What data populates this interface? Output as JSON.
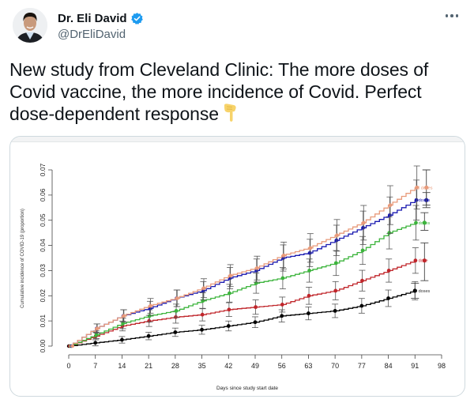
{
  "author": {
    "name": "Dr. Eli David",
    "handle": "@DrEliDavid",
    "verified": true,
    "avatar_icon": "profile-photo",
    "verified_icon": "verified-badge-icon",
    "verified_color": "#1d9bf0"
  },
  "menu": {
    "icon": "more-horizontal-icon"
  },
  "tweet": {
    "text": "New study from Cleveland Clinic: The more doses of Covid vaccine, the more incidence of Covid. Perfect dose-dependent response",
    "emoji": "backhand-index-pointing-down"
  },
  "chart_data": {
    "type": "line",
    "title": "",
    "xlabel": "Days since study start date",
    "ylabel": "Cumulative incidence of COVID-19 (proportion)",
    "xlim": [
      0,
      98
    ],
    "ylim": [
      0,
      0.07
    ],
    "x_ticks": [
      0,
      7,
      14,
      21,
      28,
      35,
      42,
      49,
      56,
      63,
      70,
      77,
      84,
      91,
      98
    ],
    "y_ticks": [
      "0.00",
      "0.01",
      "0.02",
      "0.03",
      "0.04",
      "0.05",
      "0.06",
      "0.07"
    ],
    "grid": false,
    "legend_placement": "right (inline labels)",
    "x": [
      0,
      7,
      14,
      21,
      28,
      35,
      42,
      49,
      56,
      63,
      70,
      77,
      84,
      91
    ],
    "series": [
      {
        "name": "0 doses",
        "color": "#000000",
        "values": [
          0.0,
          0.0013,
          0.0025,
          0.004,
          0.0055,
          0.0065,
          0.008,
          0.0095,
          0.012,
          0.013,
          0.014,
          0.016,
          0.019,
          0.022
        ],
        "end_marker": {
          "x": 91,
          "y": 0.022,
          "ci": [
            0.019,
            0.025
          ]
        }
      },
      {
        "name": "1 dose",
        "color": "#c0262b",
        "values": [
          0.0,
          0.004,
          0.008,
          0.01,
          0.0115,
          0.0125,
          0.0145,
          0.0155,
          0.0165,
          0.02,
          0.022,
          0.026,
          0.03,
          0.034
        ],
        "end_marker": {
          "x": 93.5,
          "y": 0.034,
          "ci": [
            0.026,
            0.041
          ]
        }
      },
      {
        "name": "2 doses",
        "color": "#3cb43c",
        "values": [
          0.0,
          0.0045,
          0.009,
          0.012,
          0.014,
          0.018,
          0.021,
          0.025,
          0.027,
          0.03,
          0.033,
          0.038,
          0.045,
          0.049
        ],
        "end_marker": {
          "x": 93.5,
          "y": 0.049,
          "ci": [
            0.046,
            0.053
          ]
        }
      },
      {
        "name": "3 doses",
        "color": "#1a1ab0",
        "values": [
          0.0,
          0.007,
          0.012,
          0.015,
          0.019,
          0.022,
          0.027,
          0.03,
          0.035,
          0.037,
          0.042,
          0.047,
          0.052,
          0.058
        ],
        "end_marker": {
          "x": 94,
          "y": 0.058,
          "ci": [
            0.055,
            0.061
          ]
        }
      },
      {
        "name": ">3 doses",
        "color": "#e89a7a",
        "values": [
          0.0,
          0.007,
          0.012,
          0.016,
          0.019,
          0.023,
          0.028,
          0.031,
          0.036,
          0.039,
          0.044,
          0.049,
          0.056,
          0.063
        ],
        "end_marker": {
          "x": 94,
          "y": 0.063,
          "ci": [
            0.056,
            0.07
          ]
        }
      }
    ]
  }
}
